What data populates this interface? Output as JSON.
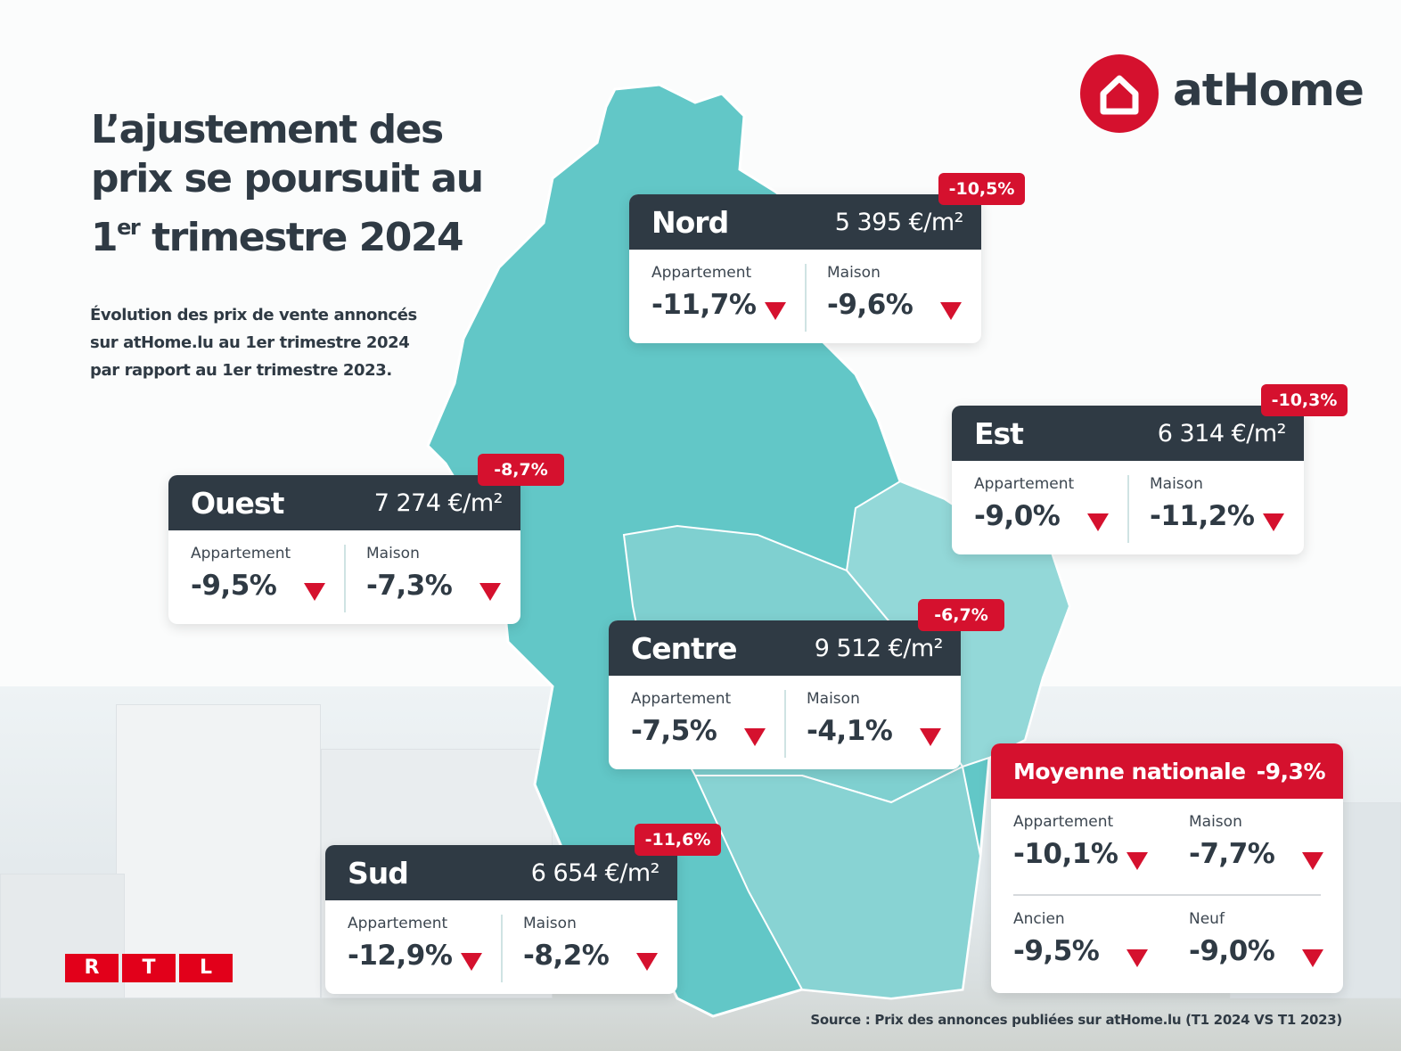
{
  "brand": {
    "name": "atHome",
    "icon": "house-icon",
    "color": "#d5112e"
  },
  "title": {
    "line1": "L’ajustement des",
    "line2": "prix se poursuit au",
    "line3_prefix": "1",
    "line3_sup": "er",
    "line3_rest": " trimestre 2024"
  },
  "subtitle": {
    "line1": "Évolution des prix de vente annoncés",
    "line2": "sur atHome.lu au 1er trimestre 2024",
    "line3": "par rapport au 1er trimestre 2023."
  },
  "regions": [
    {
      "name": "Nord",
      "price": "5 395 €/m²",
      "change": "-10,5%",
      "appartement_label": "Appartement",
      "appartement": "-11,7%",
      "maison_label": "Maison",
      "maison": "-9,6%"
    },
    {
      "name": "Est",
      "price": "6 314 €/m²",
      "change": "-10,3%",
      "appartement_label": "Appartement",
      "appartement": "-9,0%",
      "maison_label": "Maison",
      "maison": "-11,2%"
    },
    {
      "name": "Ouest",
      "price": "7 274 €/m²",
      "change": "-8,7%",
      "appartement_label": "Appartement",
      "appartement": "-9,5%",
      "maison_label": "Maison",
      "maison": "-7,3%"
    },
    {
      "name": "Centre",
      "price": "9 512 €/m²",
      "change": "-6,7%",
      "appartement_label": "Appartement",
      "appartement": "-7,5%",
      "maison_label": "Maison",
      "maison": "-4,1%"
    },
    {
      "name": "Sud",
      "price": "6 654 €/m²",
      "change": "-11,6%",
      "appartement_label": "Appartement",
      "appartement": "-12,9%",
      "maison_label": "Maison",
      "maison": "-8,2%"
    }
  ],
  "national": {
    "label": "Moyenne nationale",
    "change": "-9,3%",
    "items": [
      {
        "label": "Appartement",
        "value": "-10,1%"
      },
      {
        "label": "Maison",
        "value": "-7,7%"
      },
      {
        "label": "Ancien",
        "value": "-9,5%"
      },
      {
        "label": "Neuf",
        "value": "-9,0%"
      }
    ]
  },
  "colors": {
    "map": "#62c7c7",
    "map_light": "#8fd5d5",
    "card_header": "#2f3a44",
    "accent": "#d5112e"
  },
  "rtl": {
    "letters": [
      "R",
      "T",
      "L"
    ]
  },
  "source": "Source : Prix des annonces publiées sur atHome.lu (T1 2024 VS T1 2023)"
}
